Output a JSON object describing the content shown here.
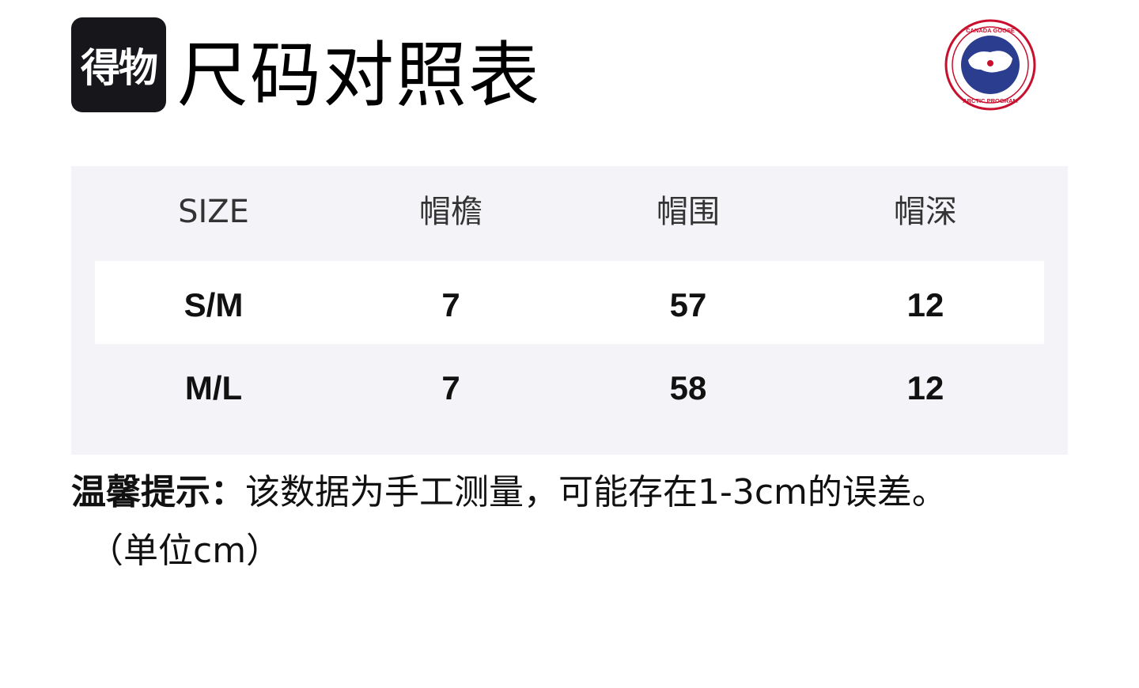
{
  "header": {
    "logo_text": "得物",
    "title": "尺码对照表",
    "brand_logo": "CANADA GOOSE ARCTIC PROGRAM"
  },
  "table": {
    "columns": [
      "SIZE",
      "帽檐",
      "帽围",
      "帽深"
    ],
    "rows": [
      [
        "S/M",
        "7",
        "57",
        "12"
      ],
      [
        "M/L",
        "7",
        "58",
        "12"
      ]
    ]
  },
  "note": {
    "label": "温馨提示：",
    "text": "该数据为手工测量，可能存在1-3cm的误差。",
    "unit": "（单位cm）"
  },
  "colors": {
    "panel": "#f4f4f8",
    "brand_red": "#c8102e",
    "brand_blue": "#2a3d8f"
  }
}
